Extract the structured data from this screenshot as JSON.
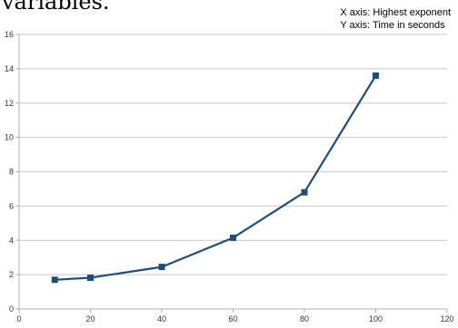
{
  "header_fragment": "variables.",
  "axis_note": {
    "x_line": "X axis: Highest exponent",
    "y_line": "Y axis: Time in seconds"
  },
  "chart_data": {
    "type": "line",
    "title": "",
    "xlabel": "X axis: Highest exponent",
    "ylabel": "Y axis: Time in seconds",
    "x": [
      10,
      20,
      40,
      60,
      80,
      100
    ],
    "series": [
      {
        "values": [
          1.7,
          1.82,
          2.45,
          4.15,
          6.8,
          13.6
        ]
      }
    ],
    "xlim": [
      0,
      120
    ],
    "ylim": [
      0,
      16
    ],
    "xticks": [
      0,
      20,
      40,
      60,
      80,
      100,
      120
    ],
    "yticks": [
      0,
      2,
      4,
      6,
      8,
      10,
      12,
      14,
      16
    ],
    "grid": true,
    "marker": "square",
    "colors": {
      "line": "#1f4e79",
      "grid": "#c8c8c8",
      "axis": "#b0b0b0"
    }
  }
}
